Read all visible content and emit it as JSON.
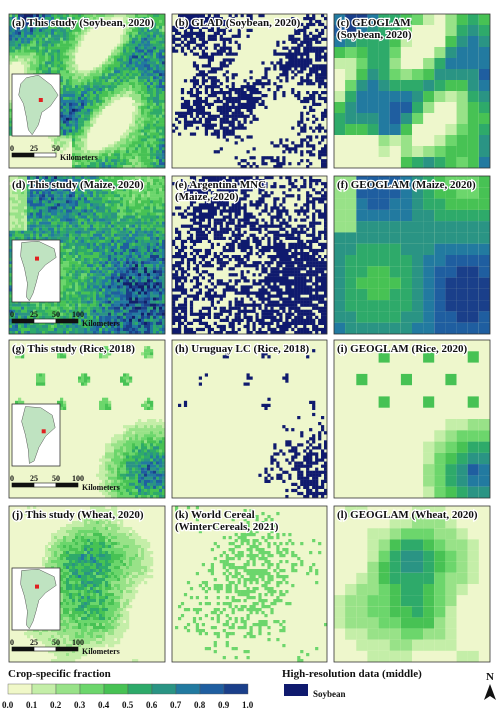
{
  "panels": [
    {
      "label": "(a) This study (Soybean, 2020)",
      "kind": "study",
      "crop": "soybean",
      "inset": "sa",
      "scale": {
        "ticks": [
          "0",
          "25",
          "50"
        ],
        "unit": "Kilometers"
      }
    },
    {
      "label": "(b) GLAD (Soybean, 2020)",
      "kind": "binary",
      "crop": "soybean"
    },
    {
      "label": "(c) GEOGLAM\n(Soybean, 2020)",
      "kind": "geoglam",
      "crop": "soybean"
    },
    {
      "label": "(d) This study (Maize, 2020)",
      "kind": "study",
      "crop": "maize",
      "inset": "arg",
      "scale": {
        "ticks": [
          "0",
          "25",
          "50",
          "100"
        ],
        "unit": "Kilometers"
      }
    },
    {
      "label": "(e) Argentina MNC\n(Maize, 2020)",
      "kind": "binary",
      "crop": "maize"
    },
    {
      "label": "(f) GEOGLAM (Maize, 2020)",
      "kind": "geoglam",
      "crop": "maize"
    },
    {
      "label": "(g) This study (Rice, 2018)",
      "kind": "study",
      "crop": "rice",
      "inset": "uru",
      "scale": {
        "ticks": [
          "0",
          "25",
          "50",
          "100"
        ],
        "unit": "Kilometers"
      }
    },
    {
      "label": "(h) Uruguay LC (Rice, 2018)",
      "kind": "binary",
      "crop": "rice"
    },
    {
      "label": "(i) GEOGLAM (Rice, 2020)",
      "kind": "geoglam",
      "crop": "rice"
    },
    {
      "label": "(j) This study (Wheat, 2020)",
      "kind": "study",
      "crop": "wheat",
      "inset": "arg",
      "scale": {
        "ticks": [
          "0",
          "25",
          "50",
          "100"
        ],
        "unit": "Kilometers"
      }
    },
    {
      "label": "(k) World Cereal\n(WinterCereals, 2021)",
      "kind": "binary",
      "crop": "wheat"
    },
    {
      "label": "(l) GEOGLAM (Wheat, 2020)",
      "kind": "geoglam",
      "crop": "wheat"
    }
  ],
  "legend": {
    "title": "Crop-specific fraction",
    "ticks": [
      "0.0",
      "0.1",
      "0.2",
      "0.3",
      "0.4",
      "0.5",
      "0.6",
      "0.7",
      "0.8",
      "0.9",
      "1.0"
    ],
    "colors": [
      "#f0f8c8",
      "#c4eea8",
      "#98e288",
      "#6cd66c",
      "#47c254",
      "#2eaa6a",
      "#2a9484",
      "#227aa0",
      "#1f5ea0",
      "#1a3f8a",
      "#121f6a"
    ]
  },
  "hires": {
    "title": "High-resolution data (middle)",
    "item": "Soybean",
    "color": "#0f1a6e"
  },
  "north": "N",
  "colors": {
    "background": "#eef7cc",
    "frame": "#333333",
    "inset_land": "#bfe3c1",
    "inset_ocean": "#ffffff",
    "marker": "#e02020"
  }
}
